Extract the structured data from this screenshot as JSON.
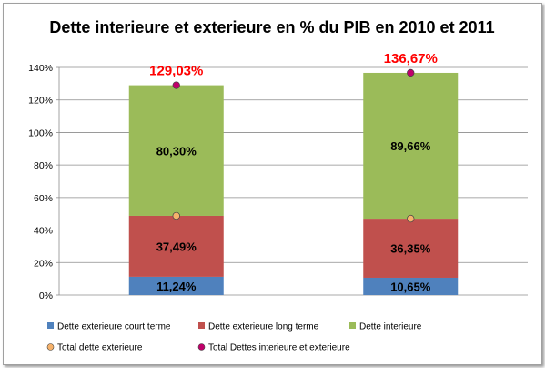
{
  "chart_data": {
    "type": "bar",
    "stacked": true,
    "title": "Dette interieure et exterieure en % du PIB en 2010 et 2011",
    "categories": [
      "",
      ""
    ],
    "ylim": [
      0,
      140
    ],
    "yticks": [
      "0%",
      "20%",
      "40%",
      "60%",
      "80%",
      "100%",
      "120%",
      "140%"
    ],
    "grid": true,
    "legend": "bottom",
    "series": [
      {
        "name": "Dette exterieure court terme",
        "color": "#4f81bd",
        "values": [
          11.24,
          10.65
        ],
        "labels": [
          "11,24%",
          "10,65%"
        ]
      },
      {
        "name": "Dette exterieure long terme",
        "color": "#c0504d",
        "values": [
          37.49,
          36.35
        ],
        "labels": [
          "37,49%",
          "36,35%"
        ]
      },
      {
        "name": "Dette interieure",
        "color": "#9bbb59",
        "values": [
          80.3,
          89.66
        ],
        "labels": [
          "80,30%",
          "89,66%"
        ]
      }
    ],
    "markers": [
      {
        "name": "Total dette exterieure",
        "color": "#f6b26b",
        "values": [
          48.73,
          47.0
        ]
      },
      {
        "name": "Total Dettes interieure et exterieure",
        "color": "#c0006a",
        "values": [
          129.03,
          136.67
        ],
        "labels": [
          "129,03%",
          "136,67%"
        ]
      }
    ]
  }
}
